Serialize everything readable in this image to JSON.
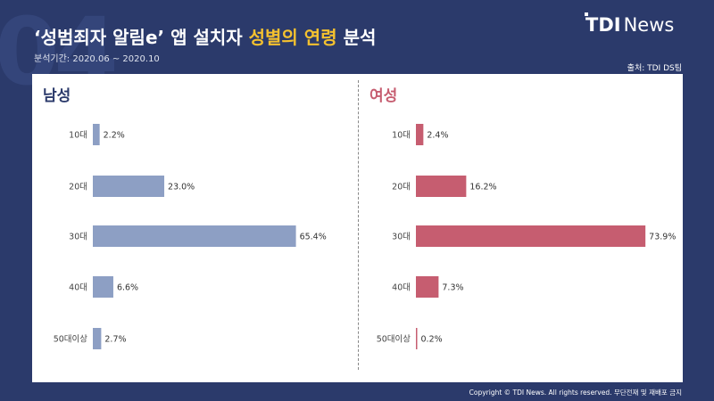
{
  "watermark_number": "04",
  "title": {
    "main": "‘성범죄자 알림e’ 앱 설치자",
    "highlight": "성별의 연령",
    "end": "분석"
  },
  "period": "분석기간: 2020.06 ~ 2020.10",
  "source": "출처: TDI DS팀",
  "logo": {
    "bold": "TDI",
    "light": "News"
  },
  "copyright": "Copyright © TDI News. All rights reserved. 무단전재 및 재배포 금지",
  "colors": {
    "male": "#8d9fc4",
    "female": "#c65d70",
    "male_title": "#2b3a6b",
    "female_title": "#c65d70",
    "highlight": "#f4c12f"
  },
  "chart_data": [
    {
      "type": "bar",
      "orientation": "horizontal",
      "title": "남성",
      "categories": [
        "10대",
        "20대",
        "30대",
        "40대",
        "50대이상"
      ],
      "values": [
        2.2,
        23.0,
        65.4,
        6.6,
        2.7
      ],
      "value_labels": [
        "2.2%",
        "23.0%",
        "65.4%",
        "6.6%",
        "2.7%"
      ],
      "unit": "%"
    },
    {
      "type": "bar",
      "orientation": "horizontal",
      "title": "여성",
      "categories": [
        "10대",
        "20대",
        "30대",
        "40대",
        "50대이상"
      ],
      "values": [
        2.4,
        16.2,
        73.9,
        7.3,
        0.2
      ],
      "value_labels": [
        "2.4%",
        "16.2%",
        "73.9%",
        "7.3%",
        "0.2%"
      ],
      "unit": "%"
    }
  ]
}
